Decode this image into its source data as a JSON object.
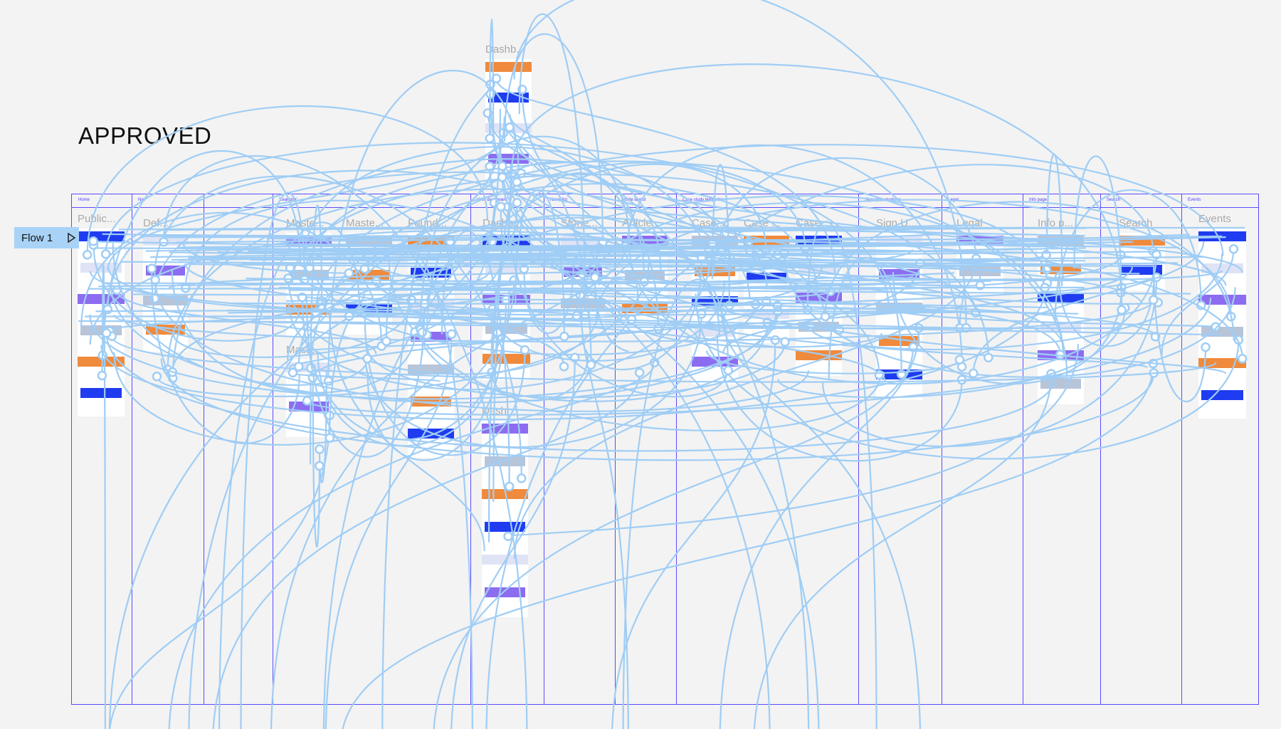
{
  "canvas_title": "APPROVED",
  "flow_button": {
    "label": "Flow 1",
    "icon": "play-icon"
  },
  "top_frame": {
    "label": "Dashb..."
  },
  "columns": [
    {
      "label": "Home"
    },
    {
      "label": "Nav"
    },
    {
      "label": ""
    },
    {
      "label": "'Learning'"
    },
    {
      "label": "User dashboard"
    },
    {
      "label": "News list"
    },
    {
      "label": "Article layout"
    },
    {
      "label": "Case study templates"
    },
    {
      "label": "Sign up/in modules"
    },
    {
      "label": "Legal"
    },
    {
      "label": "Info page"
    },
    {
      "label": "Search"
    },
    {
      "label": "Events"
    }
  ],
  "frames": [
    {
      "label": "Public..."
    },
    {
      "label": "Def..."
    },
    {
      "label": "Maste..."
    },
    {
      "label": "Maste..."
    },
    {
      "label": "Found..."
    },
    {
      "label": "Dashb..."
    },
    {
      "label": "Storie..."
    },
    {
      "label": "Article..."
    },
    {
      "label": "Case ..."
    },
    {
      "label": "Case ..."
    },
    {
      "label": "Case ..."
    },
    {
      "label": "Sign U..."
    },
    {
      "label": "Legal"
    },
    {
      "label": "Info p..."
    },
    {
      "label": "Search"
    },
    {
      "label": "Events"
    },
    {
      "label": "Maste..."
    },
    {
      "label": "Dash..."
    }
  ],
  "colors": {
    "grid": "#5a4bff",
    "connection": "#9fcdf5",
    "frame_accent": "#1f3cf0",
    "flow_button": "#a8d3f7"
  }
}
